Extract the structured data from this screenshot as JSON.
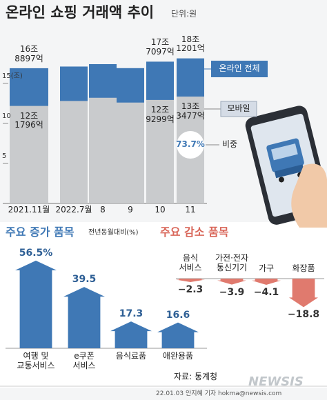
{
  "header": {
    "title": "온라인 쇼핑 거래액 추이",
    "unit": "단위:원"
  },
  "chart_data": [
    {
      "type": "overlap_bar",
      "categories": [
        "2021.11월",
        "2022.7월",
        "8",
        "9",
        "10",
        "11"
      ],
      "ylim": [
        0,
        20.5
      ],
      "yticks": [
        5,
        10,
        {
          "value": 15,
          "label": "15(조)"
        }
      ],
      "series": [
        {
          "name": "온라인 전체",
          "color": "#3f78b5",
          "values": [
            16.8897,
            17.1,
            17.4,
            16.9,
            17.7097,
            18.1201
          ],
          "value_labels": [
            "16조\n8897억",
            null,
            null,
            null,
            "17조\n7097억",
            "18조\n1201억"
          ]
        },
        {
          "name": "모바일",
          "color": "#c9cbcd",
          "values": [
            12.1796,
            12.8,
            13.2,
            12.6,
            12.9299,
            13.3477
          ],
          "value_labels": [
            "12조\n1796억",
            null,
            null,
            null,
            "12조\n9299억",
            "13조\n3477억"
          ]
        },
        {
          "name": "비중",
          "values": [
            null,
            null,
            null,
            null,
            null,
            73.7
          ],
          "value_labels": [
            null,
            null,
            null,
            null,
            null,
            "73.7%"
          ]
        }
      ]
    },
    {
      "type": "arrow_bar",
      "title": "주요 증가 품목",
      "note": "전년동월대비(%)",
      "categories": [
        "여행 및\n교통서비스",
        "e쿠폰\n서비스",
        "음식료품",
        "애완용품"
      ],
      "values": [
        56.5,
        39.5,
        17.3,
        16.6
      ],
      "value_labels": [
        "56.5%",
        "39.5",
        "17.3",
        "16.6"
      ],
      "color": "#3f78b5"
    },
    {
      "type": "arrow_bar",
      "title": "주요 감소 품목",
      "categories": [
        "음식\n서비스",
        "가전·전자\n통신기기",
        "가구",
        "화장품"
      ],
      "values": [
        -2.3,
        -3.9,
        -4.1,
        -18.8
      ],
      "value_labels": [
        "−2.3",
        "−3.9",
        "−4.1",
        "−18.8"
      ],
      "color": "#e07a6e"
    }
  ],
  "footer": {
    "source": "자료: 통계청",
    "credit": "22.01.03 안지혜 기자 hokma@newsis.com",
    "watermark": "NEWSIS"
  }
}
